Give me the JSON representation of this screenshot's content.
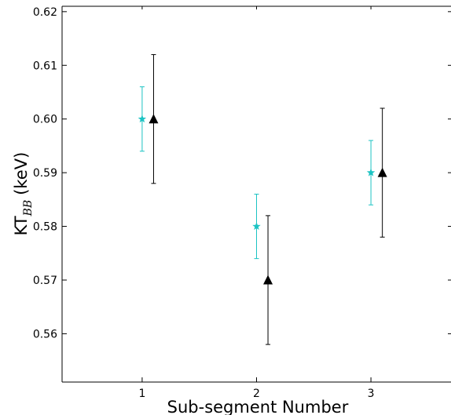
{
  "chart_data": {
    "type": "scatter",
    "title": "",
    "xlabel": "Sub-segment Number",
    "ylabel": {
      "main": "KT",
      "subscript": "BB",
      "unit": "(keV)"
    },
    "xlim": [
      0.3,
      3.7
    ],
    "ylim": [
      0.551,
      0.621
    ],
    "x_ticks": [
      {
        "value": 1,
        "label": "1"
      },
      {
        "value": 2,
        "label": "2"
      },
      {
        "value": 3,
        "label": "3"
      }
    ],
    "y_ticks": [
      {
        "value": 0.56,
        "label": "0.56"
      },
      {
        "value": 0.57,
        "label": "0.57"
      },
      {
        "value": 0.58,
        "label": "0.58"
      },
      {
        "value": 0.59,
        "label": "0.59"
      },
      {
        "value": 0.6,
        "label": "0.60"
      },
      {
        "value": 0.61,
        "label": "0.61"
      },
      {
        "value": 0.62,
        "label": "0.62"
      }
    ],
    "grid": false,
    "legend": "none",
    "series": [
      {
        "marker": "star",
        "color": "#1cc3c3",
        "points": [
          {
            "x": 1.0,
            "y": 0.6,
            "err": 0.006
          },
          {
            "x": 2.0,
            "y": 0.58,
            "err": 0.006
          },
          {
            "x": 3.0,
            "y": 0.59,
            "err": 0.006
          }
        ]
      },
      {
        "marker": "triangle",
        "color": "#000000",
        "points": [
          {
            "x": 1.1,
            "y": 0.6,
            "err": 0.012
          },
          {
            "x": 2.1,
            "y": 0.57,
            "err": 0.012
          },
          {
            "x": 3.1,
            "y": 0.59,
            "err": 0.012
          }
        ]
      }
    ]
  }
}
